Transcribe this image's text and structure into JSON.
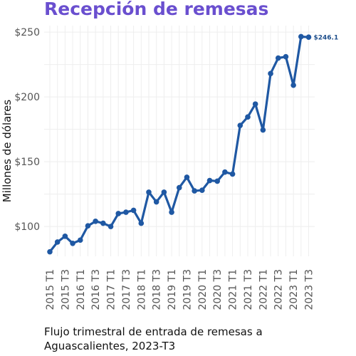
{
  "title": "Recepción de remesas",
  "caption": "Flujo trimestral de entrada de remesas a Aguascalientes, 2023-T3",
  "colors": {
    "title": "#6a4fcf",
    "line": "#1f58a3",
    "grid": "#eeeeee"
  },
  "chart_data": {
    "type": "line",
    "title": "Recepción de remesas",
    "ylabel": "Millones de dólares",
    "xlabel": "",
    "ylim": [
      77,
      255
    ],
    "yticks": [
      100,
      150,
      200,
      250
    ],
    "ytick_labels": [
      "$100",
      "$150",
      "$200",
      "$250"
    ],
    "grid": true,
    "x": [
      "2015 T1",
      "2015 T2",
      "2015 T3",
      "2015 T4",
      "2016 T1",
      "2016 T2",
      "2016 T3",
      "2016 T4",
      "2017 T1",
      "2017 T2",
      "2017 T3",
      "2017 T4",
      "2018 T1",
      "2018 T2",
      "2018 T3",
      "2018 T4",
      "2019 T1",
      "2019 T2",
      "2019 T3",
      "2019 T4",
      "2020 T1",
      "2020 T2",
      "2020 T3",
      "2020 T4",
      "2021 T1",
      "2021 T2",
      "2021 T3",
      "2021 T4",
      "2022 T1",
      "2022 T2",
      "2022 T3",
      "2022 T4",
      "2023 T1",
      "2023 T2",
      "2023 T3"
    ],
    "xtick_labels": [
      "2015 T1",
      "2015 T3",
      "2016 T1",
      "2016 T3",
      "2017 T1",
      "2017 T3",
      "2018 T1",
      "2018 T3",
      "2019 T1",
      "2019 T3",
      "2020 T1",
      "2020 T3",
      "2021 T1",
      "2021 T3",
      "2022 T1",
      "2022 T3",
      "2023 T1",
      "2023 T3"
    ],
    "series": [
      {
        "values": [
          80.5,
          88,
          92.5,
          87,
          89.5,
          100.5,
          104,
          102.5,
          100,
          110,
          111,
          112.5,
          102.5,
          126.5,
          119,
          126.5,
          111,
          130,
          138,
          127.5,
          128,
          135.5,
          135,
          142,
          140.5,
          178,
          184.5,
          194.5,
          174.5,
          218,
          230,
          231,
          209,
          246.5,
          246.1
        ],
        "color": "#1f58a3"
      }
    ],
    "annotations": [
      {
        "x": "2023 T3",
        "text": "$246.1"
      }
    ]
  }
}
